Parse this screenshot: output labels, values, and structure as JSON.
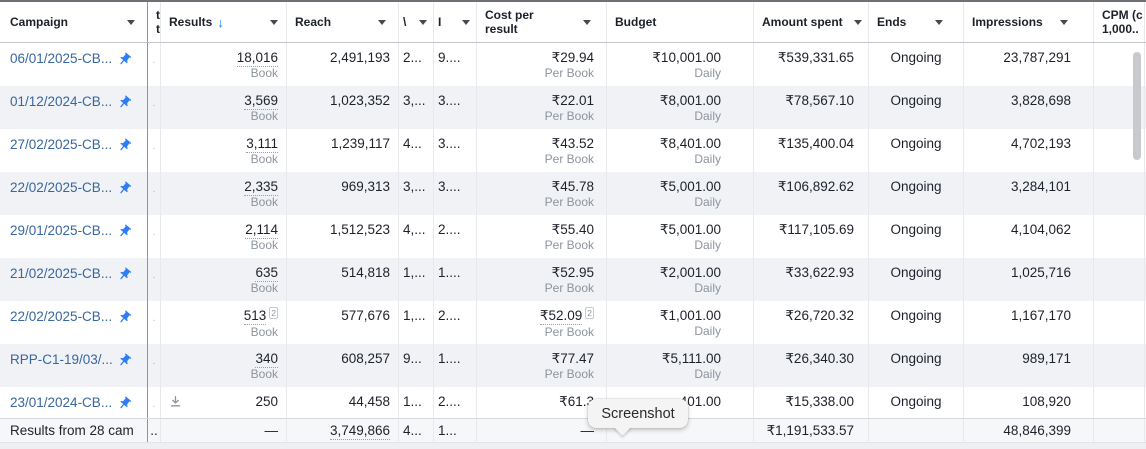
{
  "colors": {
    "link_blue": "#3866a0",
    "pin_blue": "#2e7df6",
    "sort_arrow_blue": "#1877f2",
    "row_stripe": "#f0f2f5",
    "secondary_text": "#8d949e",
    "header_text": "#1c2028"
  },
  "tooltip": {
    "label": "Screenshot"
  },
  "table": {
    "columns": [
      {
        "key": "campaign",
        "label": "Campaign",
        "caret": true
      },
      {
        "key": "colA",
        "label": "t",
        "label2": "t"
      },
      {
        "key": "results",
        "label": "Results",
        "sort": "↓",
        "caret": true
      },
      {
        "key": "reach",
        "label": "Reach",
        "caret": true
      },
      {
        "key": "col5",
        "label": "\\",
        "caret": true
      },
      {
        "key": "col6",
        "label": "I",
        "caret": true
      },
      {
        "key": "cost_per_result",
        "label": "Cost per",
        "label2": "result",
        "caret": true
      },
      {
        "key": "budget",
        "label": "Budget"
      },
      {
        "key": "amount_spent",
        "label": "Amount spent",
        "caret": true
      },
      {
        "key": "ends",
        "label": "Ends",
        "caret": true
      },
      {
        "key": "impressions",
        "label": "Impressions",
        "caret": true
      },
      {
        "key": "cpm",
        "label": "CPM (c",
        "label2": "1,000.."
      }
    ],
    "rows": [
      {
        "campaign": "06/01/2025-CB...",
        "pinned": true,
        "colA": ".",
        "results": "18,016",
        "results_label": "Book",
        "results_underline": true,
        "reach": "2,491,193",
        "col5": "2...",
        "col6": "9....",
        "cost_per_result": "₹29.94",
        "cpr_label": "Per Book",
        "budget": "₹10,001.00",
        "budget_label": "Daily",
        "amount_spent": "₹539,331.65",
        "ends": "Ongoing",
        "impressions": "23,787,291",
        "cpm": ""
      },
      {
        "campaign": "01/12/2024-CB...",
        "pinned": true,
        "colA": ".",
        "results": "3,569",
        "results_label": "Book",
        "results_underline": true,
        "reach": "1,023,352",
        "col5": "3,...",
        "col6": "3....",
        "cost_per_result": "₹22.01",
        "cpr_label": "Per Book",
        "budget": "₹8,001.00",
        "budget_label": "Daily",
        "amount_spent": "₹78,567.10",
        "ends": "Ongoing",
        "impressions": "3,828,698",
        "cpm": ""
      },
      {
        "campaign": "27/02/2025-CB...",
        "pinned": true,
        "colA": ".",
        "results": "3,111",
        "results_label": "Book",
        "results_underline": true,
        "reach": "1,239,117",
        "col5": "4...",
        "col6": "3....",
        "cost_per_result": "₹43.52",
        "cpr_label": "Per Book",
        "budget": "₹8,401.00",
        "budget_label": "Daily",
        "amount_spent": "₹135,400.04",
        "ends": "Ongoing",
        "impressions": "4,702,193",
        "cpm": ""
      },
      {
        "campaign": "22/02/2025-CB...",
        "pinned": true,
        "colA": ".",
        "results": "2,335",
        "results_label": "Book",
        "results_underline": true,
        "reach": "969,313",
        "col5": "3,...",
        "col6": "3....",
        "cost_per_result": "₹45.78",
        "cpr_label": "Per Book",
        "budget": "₹5,001.00",
        "budget_label": "Daily",
        "amount_spent": "₹106,892.62",
        "ends": "Ongoing",
        "impressions": "3,284,101",
        "cpm": ""
      },
      {
        "campaign": "29/01/2025-CB...",
        "pinned": true,
        "colA": ".",
        "results": "2,114",
        "results_label": "Book",
        "results_underline": true,
        "reach": "1,512,523",
        "col5": "4,...",
        "col6": "2....",
        "cost_per_result": "₹55.40",
        "cpr_label": "Per Book",
        "budget": "₹5,001.00",
        "budget_label": "Daily",
        "amount_spent": "₹117,105.69",
        "ends": "Ongoing",
        "impressions": "4,104,062",
        "cpm": ""
      },
      {
        "campaign": "21/02/2025-CB...",
        "pinned": true,
        "colA": ".",
        "results": "635",
        "results_label": "Book",
        "results_underline": true,
        "reach": "514,818",
        "col5": "1,...",
        "col6": "1....",
        "cost_per_result": "₹52.95",
        "cpr_label": "Per Book",
        "budget": "₹2,001.00",
        "budget_label": "Daily",
        "amount_spent": "₹33,622.93",
        "ends": "Ongoing",
        "impressions": "1,025,716",
        "cpm": ""
      },
      {
        "campaign": "22/02/2025-CB...",
        "pinned": true,
        "colA": ".",
        "results": "513",
        "results_note": "2",
        "results_label": "Book",
        "results_underline": true,
        "reach": "577,676",
        "col5": "1,...",
        "col6": "2....",
        "cost_per_result": "₹52.09",
        "cpr_note": "2",
        "cpr_underline": true,
        "cpr_label": "Per Book",
        "budget": "₹1,001.00",
        "budget_label": "Daily",
        "amount_spent": "₹26,720.32",
        "ends": "Ongoing",
        "impressions": "1,167,170",
        "cpm": ""
      },
      {
        "campaign": "RPP-C1-19/03/...",
        "pinned": true,
        "colA": ".",
        "results": "340",
        "results_label": "Book",
        "results_underline": true,
        "reach": "608,257",
        "col5": "9...",
        "col6": "1....",
        "cost_per_result": "₹77.47",
        "cpr_label": "Per Book",
        "budget": "₹5,111.00",
        "budget_label": "Daily",
        "amount_spent": "₹26,340.30",
        "ends": "Ongoing",
        "impressions": "989,171",
        "cpm": ""
      },
      {
        "campaign": "23/01/2024-CB...",
        "pinned": true,
        "short": true,
        "download_icon": true,
        "colA": ".",
        "results": "250",
        "reach": "44,458",
        "col5": "1...",
        "col6": "2....",
        "cost_per_result": "₹61.3",
        "budget": "401.00",
        "amount_spent": "₹15,338.00",
        "ends": "Ongoing",
        "impressions": "108,920",
        "cpm": ""
      }
    ],
    "footer": {
      "campaign": "Results from 28 cam",
      "colA": "..",
      "results": "—",
      "reach": "3,749,866",
      "reach_underline": true,
      "col5": "4...",
      "col6": "1...",
      "cost_per_result": "—",
      "budget": "",
      "amount_spent": "₹1,191,533.57",
      "ends": "",
      "impressions": "48,846,399",
      "cpm": ""
    }
  }
}
